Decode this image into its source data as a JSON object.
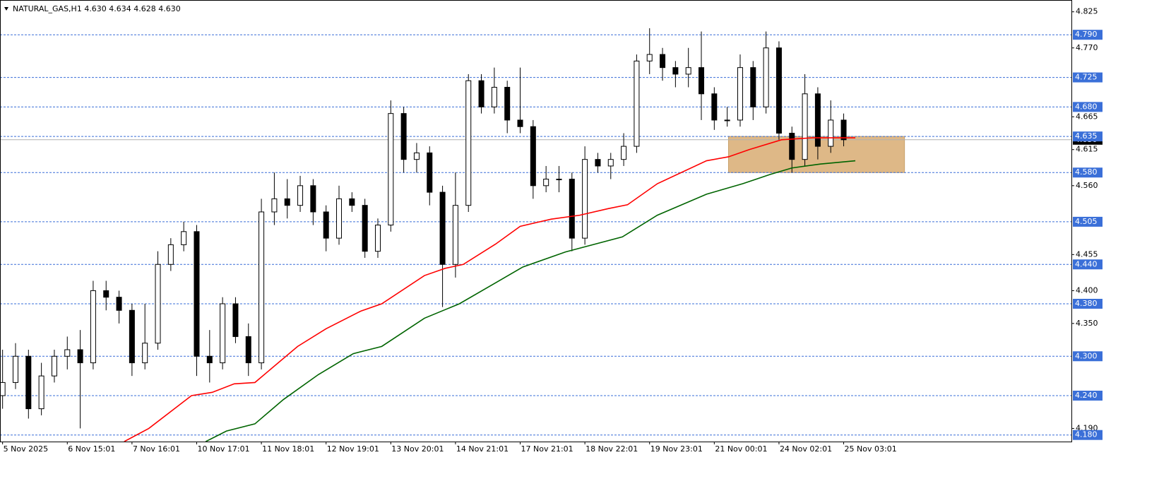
{
  "chart_data": {
    "type": "candlestick",
    "title": "NATURAL_GAS,H1  4.630 4.634 4.628 4.630",
    "xlim": [
      -0.2,
      82.6
    ],
    "ylim": [
      4.17,
      4.843
    ],
    "xticks": [
      {
        "value": 0,
        "label": "5 Nov 2025"
      },
      {
        "value": 5,
        "label": "6 Nov 15:01"
      },
      {
        "value": 10,
        "label": "7 Nov 16:01"
      },
      {
        "value": 15,
        "label": "10 Nov 17:01"
      },
      {
        "value": 20,
        "label": "11 Nov 18:01"
      },
      {
        "value": 25,
        "label": "12 Nov 19:01"
      },
      {
        "value": 30,
        "label": "13 Nov 20:01"
      },
      {
        "value": 35,
        "label": "14 Nov 21:01"
      },
      {
        "value": 40,
        "label": "17 Nov 21:01"
      },
      {
        "value": 45,
        "label": "18 Nov 22:01"
      },
      {
        "value": 50,
        "label": "19 Nov 23:01"
      },
      {
        "value": 55,
        "label": "21 Nov 00:01"
      },
      {
        "value": 60,
        "label": "24 Nov 02:01"
      },
      {
        "value": 65,
        "label": "25 Nov 03:01"
      }
    ],
    "yticks": [
      4.825,
      {
        "value": 4.77,
        "label": "4.770"
      },
      4.665,
      4.615,
      {
        "value": 4.56,
        "label": "4.560"
      },
      4.455,
      {
        "value": 4.4,
        "label": "4.400"
      },
      {
        "value": 4.35,
        "label": "4.350"
      },
      {
        "value": 4.19,
        "label": "4.190"
      }
    ],
    "levels": [
      {
        "value": 4.79,
        "label": "4.790"
      },
      4.725,
      {
        "value": 4.68,
        "label": "4.680"
      },
      4.635,
      {
        "value": 4.58,
        "label": "4.580"
      },
      4.505,
      {
        "value": 4.44,
        "label": "4.440"
      },
      {
        "value": 4.38,
        "label": "4.380"
      },
      {
        "value": 4.3,
        "label": "4.300"
      },
      {
        "value": 4.24,
        "label": "4.240"
      },
      {
        "value": 4.18,
        "label": "4.180"
      }
    ],
    "levels_color": "#3a6fd8",
    "last_price": {
      "value": 4.63,
      "label": "4.630"
    },
    "zone": {
      "x": [
        56.1,
        69.7
      ],
      "y": [
        4.58,
        4.635
      ],
      "color": "#deb887"
    },
    "candles": {
      "open": [
        4.24,
        4.26,
        4.3,
        4.22,
        4.27,
        4.3,
        4.31,
        4.29,
        4.4,
        4.39,
        4.37,
        4.29,
        4.32,
        4.44,
        4.47,
        4.49,
        4.3,
        4.29,
        4.38,
        4.33,
        4.29,
        4.52,
        4.54,
        4.53,
        4.56,
        4.52,
        4.48,
        4.54,
        4.53,
        4.46,
        4.5,
        4.67,
        4.6,
        4.61,
        4.55,
        4.44,
        4.53,
        4.72,
        4.68,
        4.71,
        4.66,
        4.65,
        4.56,
        4.57,
        4.57,
        4.48,
        4.6,
        4.59,
        4.6,
        4.62,
        4.75,
        4.76,
        4.74,
        4.73,
        4.74,
        4.7,
        4.66,
        4.66,
        4.74,
        4.68,
        4.77,
        4.64,
        4.6,
        4.7,
        4.62,
        4.66
      ],
      "high": [
        4.31,
        4.32,
        4.31,
        4.29,
        4.31,
        4.33,
        4.34,
        4.415,
        4.415,
        4.4,
        4.38,
        4.38,
        4.46,
        4.48,
        4.505,
        4.5,
        4.34,
        4.39,
        4.39,
        4.35,
        4.54,
        4.58,
        4.57,
        4.575,
        4.57,
        4.53,
        4.56,
        4.55,
        4.54,
        4.51,
        4.69,
        4.68,
        4.625,
        4.62,
        4.56,
        4.58,
        4.73,
        4.73,
        4.74,
        4.72,
        4.74,
        4.66,
        4.59,
        4.59,
        4.58,
        4.62,
        4.61,
        4.61,
        4.64,
        4.76,
        4.8,
        4.77,
        4.75,
        4.77,
        4.795,
        4.71,
        4.68,
        4.76,
        4.75,
        4.795,
        4.78,
        4.65,
        4.73,
        4.71,
        4.69,
        4.67
      ],
      "low": [
        4.22,
        4.25,
        4.205,
        4.21,
        4.26,
        4.28,
        4.19,
        4.28,
        4.37,
        4.35,
        4.27,
        4.28,
        4.31,
        4.43,
        4.46,
        4.27,
        4.26,
        4.28,
        4.32,
        4.27,
        4.28,
        4.5,
        4.51,
        4.52,
        4.5,
        4.46,
        4.47,
        4.52,
        4.45,
        4.45,
        4.49,
        4.58,
        4.58,
        4.53,
        4.375,
        4.42,
        4.52,
        4.67,
        4.67,
        4.64,
        4.64,
        4.54,
        4.55,
        4.55,
        4.46,
        4.47,
        4.58,
        4.57,
        4.59,
        4.61,
        4.73,
        4.72,
        4.71,
        4.71,
        4.66,
        4.645,
        4.65,
        4.65,
        4.66,
        4.67,
        4.63,
        4.58,
        4.59,
        4.6,
        4.61,
        4.62
      ],
      "close": [
        4.26,
        4.3,
        4.22,
        4.27,
        4.3,
        4.31,
        4.29,
        4.4,
        4.39,
        4.37,
        4.29,
        4.32,
        4.44,
        4.47,
        4.49,
        4.3,
        4.29,
        4.38,
        4.33,
        4.29,
        4.52,
        4.54,
        4.53,
        4.56,
        4.52,
        4.48,
        4.54,
        4.53,
        4.46,
        4.5,
        4.67,
        4.6,
        4.61,
        4.55,
        4.44,
        4.53,
        4.72,
        4.68,
        4.71,
        4.66,
        4.65,
        4.56,
        4.57,
        4.57,
        4.48,
        4.6,
        4.59,
        4.6,
        4.62,
        4.75,
        4.76,
        4.74,
        4.73,
        4.74,
        4.7,
        4.66,
        4.66,
        4.74,
        4.68,
        4.77,
        4.64,
        4.6,
        4.7,
        4.62,
        4.66,
        4.63
      ]
    },
    "moving_averages": [
      {
        "color": "#ff0000",
        "x": [
          9.4,
          11.3,
          14.6,
          16.2,
          17.9,
          19.5,
          22.8,
          25.0,
          27.7,
          29.3,
          32.6,
          34.2,
          35.6,
          38.1,
          40.0,
          42.4,
          44.6,
          46.8,
          48.3,
          50.6,
          54.4,
          56.1,
          57.7,
          60.2,
          62.6,
          65.9
        ],
        "values": [
          4.17,
          4.19,
          4.24,
          4.245,
          4.258,
          4.26,
          4.315,
          4.342,
          4.369,
          4.38,
          4.423,
          4.434,
          4.44,
          4.471,
          4.498,
          4.509,
          4.515,
          4.525,
          4.531,
          4.563,
          4.598,
          4.604,
          4.615,
          4.63,
          4.633,
          4.633
        ]
      },
      {
        "color": "#006400",
        "x": [
          15.7,
          17.3,
          19.5,
          21.7,
          24.4,
          27.1,
          29.3,
          32.6,
          35.3,
          38.1,
          40.2,
          43.5,
          47.9,
          50.6,
          54.4,
          57.2,
          59.3,
          61.0,
          63.2,
          65.9
        ],
        "values": [
          4.17,
          4.186,
          4.197,
          4.234,
          4.272,
          4.304,
          4.315,
          4.358,
          4.38,
          4.412,
          4.436,
          4.459,
          4.482,
          4.515,
          4.547,
          4.563,
          4.577,
          4.587,
          4.593,
          4.598
        ]
      }
    ]
  }
}
